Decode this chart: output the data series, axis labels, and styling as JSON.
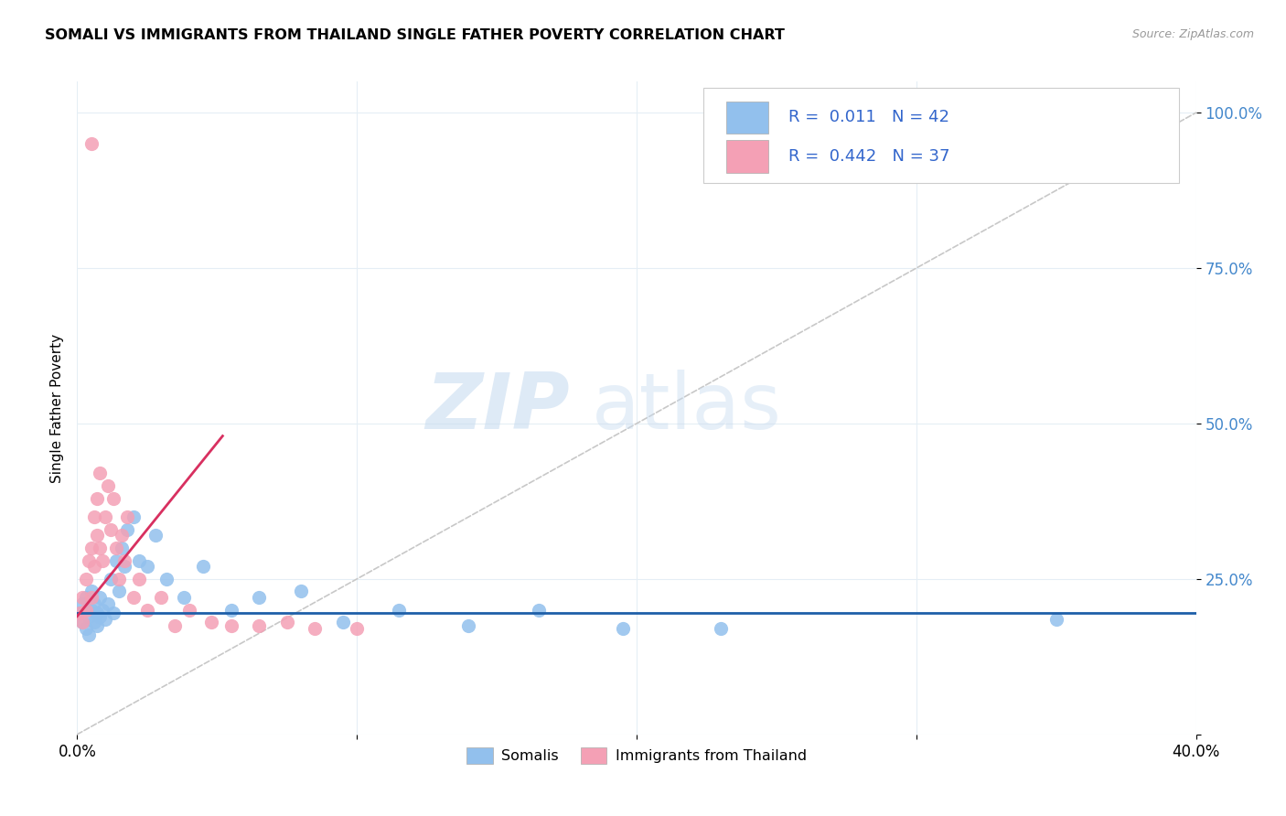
{
  "title": "SOMALI VS IMMIGRANTS FROM THAILAND SINGLE FATHER POVERTY CORRELATION CHART",
  "source": "Source: ZipAtlas.com",
  "ylabel": "Single Father Poverty",
  "xlim": [
    0.0,
    0.4
  ],
  "ylim": [
    0.0,
    1.05
  ],
  "color_somali": "#92C0ED",
  "color_thailand": "#F4A0B5",
  "color_line_somali": "#1E5FA8",
  "color_line_thailand": "#D83060",
  "color_diag": "#C8C8C8",
  "color_grid": "#E5EEF5",
  "color_ytick": "#4488CC",
  "watermark_zip": "ZIP",
  "watermark_atlas": "atlas",
  "somali_x": [
    0.001,
    0.002,
    0.002,
    0.003,
    0.003,
    0.004,
    0.004,
    0.005,
    0.005,
    0.006,
    0.006,
    0.007,
    0.007,
    0.008,
    0.008,
    0.009,
    0.01,
    0.011,
    0.012,
    0.013,
    0.014,
    0.015,
    0.016,
    0.017,
    0.018,
    0.02,
    0.022,
    0.025,
    0.028,
    0.032,
    0.038,
    0.045,
    0.055,
    0.065,
    0.08,
    0.095,
    0.115,
    0.14,
    0.165,
    0.195,
    0.23,
    0.35
  ],
  "somali_y": [
    0.195,
    0.18,
    0.21,
    0.17,
    0.22,
    0.19,
    0.16,
    0.2,
    0.23,
    0.18,
    0.21,
    0.195,
    0.175,
    0.22,
    0.19,
    0.2,
    0.185,
    0.21,
    0.25,
    0.195,
    0.28,
    0.23,
    0.3,
    0.27,
    0.33,
    0.35,
    0.28,
    0.27,
    0.32,
    0.25,
    0.22,
    0.27,
    0.2,
    0.22,
    0.23,
    0.18,
    0.2,
    0.175,
    0.2,
    0.17,
    0.17,
    0.185
  ],
  "thailand_x": [
    0.001,
    0.002,
    0.002,
    0.003,
    0.003,
    0.004,
    0.005,
    0.005,
    0.006,
    0.006,
    0.007,
    0.007,
    0.008,
    0.008,
    0.009,
    0.01,
    0.011,
    0.012,
    0.013,
    0.014,
    0.015,
    0.016,
    0.017,
    0.018,
    0.02,
    0.022,
    0.025,
    0.03,
    0.035,
    0.04,
    0.048,
    0.055,
    0.065,
    0.075,
    0.085,
    0.1,
    0.005
  ],
  "thailand_y": [
    0.195,
    0.22,
    0.18,
    0.25,
    0.2,
    0.28,
    0.22,
    0.3,
    0.27,
    0.35,
    0.32,
    0.38,
    0.3,
    0.42,
    0.28,
    0.35,
    0.4,
    0.33,
    0.38,
    0.3,
    0.25,
    0.32,
    0.28,
    0.35,
    0.22,
    0.25,
    0.2,
    0.22,
    0.175,
    0.2,
    0.18,
    0.175,
    0.175,
    0.18,
    0.17,
    0.17,
    0.95
  ],
  "somali_trend_x": [
    0.0,
    0.4
  ],
  "somali_trend_y": [
    0.195,
    0.195
  ],
  "thailand_trend_x": [
    0.0,
    0.052
  ],
  "thailand_trend_y": [
    0.19,
    0.48
  ]
}
